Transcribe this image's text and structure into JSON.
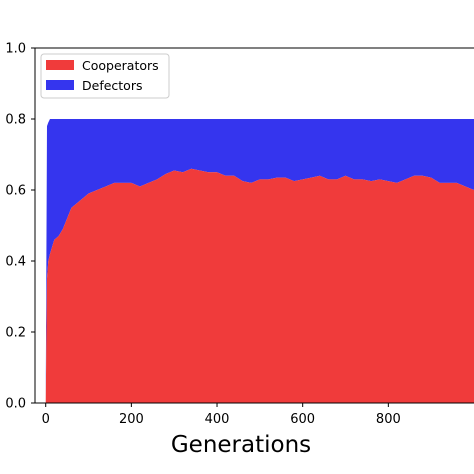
{
  "chart_data": {
    "type": "area",
    "stacked": true,
    "xlabel": "Generations",
    "ylabel": "",
    "title": "",
    "xlim": [
      -25,
      1000
    ],
    "ylim": [
      0.0,
      1.0
    ],
    "xticks": [
      0,
      200,
      400,
      600,
      800
    ],
    "yticks": [
      0.0,
      0.2,
      0.4,
      0.6,
      0.8,
      1.0
    ],
    "ytick_labels": [
      "0.0",
      "0.2",
      "0.4",
      "0.6",
      "0.8",
      "1.0"
    ],
    "grid": false,
    "legend_position": "top-left",
    "series": [
      {
        "name": "Cooperators",
        "color": "#f03b3b",
        "x": [
          0,
          3,
          6,
          10,
          15,
          20,
          30,
          40,
          50,
          60,
          70,
          80,
          90,
          100,
          120,
          140,
          160,
          180,
          200,
          220,
          240,
          260,
          280,
          300,
          320,
          340,
          360,
          380,
          400,
          420,
          440,
          460,
          480,
          500,
          520,
          540,
          560,
          580,
          600,
          620,
          640,
          660,
          680,
          700,
          720,
          740,
          760,
          780,
          800,
          820,
          840,
          860,
          880,
          900,
          920,
          940,
          960,
          980,
          1000
        ],
        "values": [
          0.0,
          0.35,
          0.4,
          0.42,
          0.44,
          0.46,
          0.47,
          0.49,
          0.52,
          0.55,
          0.56,
          0.57,
          0.58,
          0.59,
          0.6,
          0.61,
          0.62,
          0.62,
          0.62,
          0.61,
          0.62,
          0.63,
          0.645,
          0.655,
          0.65,
          0.66,
          0.655,
          0.65,
          0.65,
          0.64,
          0.64,
          0.625,
          0.62,
          0.63,
          0.63,
          0.635,
          0.635,
          0.625,
          0.63,
          0.635,
          0.64,
          0.63,
          0.63,
          0.64,
          0.63,
          0.63,
          0.625,
          0.63,
          0.625,
          0.62,
          0.63,
          0.64,
          0.64,
          0.635,
          0.62,
          0.62,
          0.62,
          0.61,
          0.6
        ]
      },
      {
        "name": "Defectors",
        "color": "#3535ee",
        "x": [
          0,
          3,
          6,
          10,
          15,
          20,
          30,
          40,
          50,
          60,
          70,
          80,
          90,
          100,
          120,
          140,
          160,
          180,
          200,
          220,
          240,
          260,
          280,
          300,
          320,
          340,
          360,
          380,
          400,
          420,
          440,
          460,
          480,
          500,
          520,
          540,
          560,
          580,
          600,
          620,
          640,
          660,
          680,
          700,
          720,
          740,
          760,
          780,
          800,
          820,
          840,
          860,
          880,
          900,
          920,
          940,
          960,
          980,
          1000
        ],
        "values": [
          0.0,
          0.43,
          0.39,
          0.38,
          0.36,
          0.34,
          0.33,
          0.31,
          0.28,
          0.25,
          0.24,
          0.23,
          0.22,
          0.21,
          0.2,
          0.19,
          0.18,
          0.18,
          0.18,
          0.19,
          0.18,
          0.17,
          0.155,
          0.145,
          0.15,
          0.14,
          0.145,
          0.15,
          0.15,
          0.16,
          0.16,
          0.175,
          0.18,
          0.17,
          0.17,
          0.165,
          0.165,
          0.175,
          0.17,
          0.165,
          0.16,
          0.17,
          0.17,
          0.16,
          0.17,
          0.17,
          0.175,
          0.17,
          0.175,
          0.18,
          0.17,
          0.16,
          0.16,
          0.165,
          0.18,
          0.18,
          0.18,
          0.19,
          0.2
        ]
      }
    ]
  }
}
